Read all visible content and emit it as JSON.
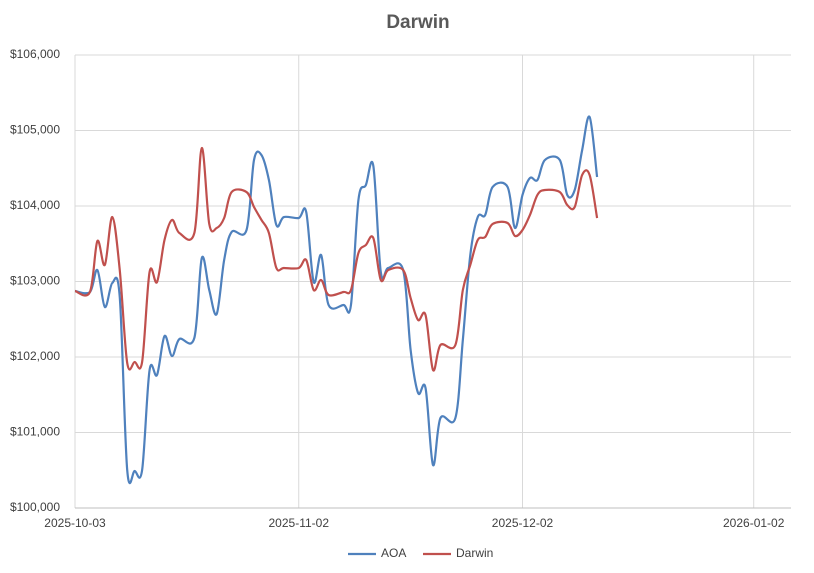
{
  "chart_data": {
    "type": "line",
    "title": "Darwin",
    "x": [
      "2025-10-03",
      "2025-10-05",
      "2025-10-06",
      "2025-10-07",
      "2025-10-08",
      "2025-10-09",
      "2025-10-10",
      "2025-10-11",
      "2025-10-12",
      "2025-10-13",
      "2025-10-14",
      "2025-10-15",
      "2025-10-16",
      "2025-10-17",
      "2025-10-19",
      "2025-10-20",
      "2025-10-21",
      "2025-10-22",
      "2025-10-23",
      "2025-10-24",
      "2025-10-26",
      "2025-10-27",
      "2025-10-28",
      "2025-10-29",
      "2025-10-30",
      "2025-10-31",
      "2025-11-02",
      "2025-11-03",
      "2025-11-04",
      "2025-11-05",
      "2025-11-06",
      "2025-11-08",
      "2025-11-09",
      "2025-11-10",
      "2025-11-11",
      "2025-11-12",
      "2025-11-13",
      "2025-11-14",
      "2025-11-16",
      "2025-11-17",
      "2025-11-18",
      "2025-11-19",
      "2025-11-20",
      "2025-11-21",
      "2025-11-23",
      "2025-11-24",
      "2025-11-25",
      "2025-11-26",
      "2025-11-27",
      "2025-11-28",
      "2025-11-30",
      "2025-12-01",
      "2025-12-02",
      "2025-12-03",
      "2025-12-04",
      "2025-12-05",
      "2025-12-07",
      "2025-12-08",
      "2025-12-09",
      "2025-12-10",
      "2025-12-11",
      "2025-12-12"
    ],
    "series": [
      {
        "name": "AOA",
        "color": "#4f81bd",
        "values": [
          102874,
          102861,
          103152,
          102662,
          102980,
          102795,
          100503,
          100490,
          100503,
          101828,
          101762,
          102278,
          102013,
          102238,
          102252,
          103311,
          102887,
          102570,
          103285,
          103656,
          103682,
          104609,
          104675,
          104344,
          103748,
          103854,
          103841,
          103921,
          102993,
          103351,
          102689,
          102689,
          102689,
          104079,
          104278,
          104530,
          103126,
          103179,
          103152,
          102093,
          101523,
          101589,
          100570,
          101192,
          101192,
          102225,
          103351,
          103854,
          103881,
          104252,
          104252,
          103709,
          104146,
          104371,
          104344,
          104609,
          104609,
          104146,
          104212,
          104742,
          105179,
          104384
        ]
      },
      {
        "name": "Darwin",
        "color": "#c0504d",
        "values": [
          102874,
          102861,
          103536,
          103219,
          103854,
          103152,
          101921,
          101934,
          101934,
          103126,
          102993,
          103550,
          103815,
          103642,
          103642,
          104768,
          103762,
          103709,
          103841,
          104185,
          104185,
          103987,
          103815,
          103642,
          103179,
          103179,
          103179,
          103285,
          102887,
          103020,
          102821,
          102861,
          102887,
          103377,
          103483,
          103576,
          103020,
          103152,
          103152,
          102781,
          102490,
          102556,
          101828,
          102159,
          102159,
          102887,
          103219,
          103550,
          103589,
          103762,
          103775,
          103603,
          103682,
          103881,
          104146,
          104212,
          104185,
          104013,
          103987,
          104411,
          104411,
          103841
        ]
      }
    ],
    "xlim": [
      "2025-10-03",
      "2026-01-07"
    ],
    "xticks": [
      "2025-10-03",
      "2025-11-02",
      "2025-12-02",
      "2026-01-02"
    ],
    "ylim": [
      100000,
      106000
    ],
    "yticks": [
      {
        "value": 100000,
        "label": "$100,000"
      },
      {
        "value": 101000,
        "label": "$101,000"
      },
      {
        "value": 102000,
        "label": "$102,000"
      },
      {
        "value": 103000,
        "label": "$103,000"
      },
      {
        "value": 104000,
        "label": "$104,000"
      },
      {
        "value": 105000,
        "label": "$105,000"
      },
      {
        "value": 106000,
        "label": "$106,000"
      }
    ],
    "grid": true,
    "legend": "bottom"
  }
}
